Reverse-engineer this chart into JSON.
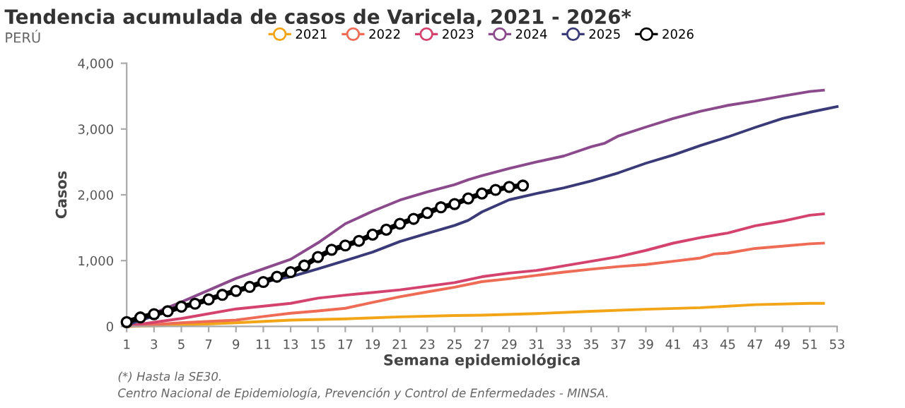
{
  "chart_data": {
    "type": "line",
    "title": "Tendencia acumulada de casos de Varicela, 2021 - 2026*",
    "subtitle": "PERÚ",
    "xlabel": "Semana epidemiológica",
    "ylabel": "Casos",
    "xlim": [
      1,
      53
    ],
    "xticks": [
      1,
      3,
      5,
      7,
      9,
      11,
      13,
      15,
      17,
      19,
      21,
      23,
      25,
      27,
      29,
      31,
      33,
      35,
      37,
      39,
      41,
      43,
      45,
      47,
      49,
      51,
      53
    ],
    "ylim": [
      0,
      4000
    ],
    "yticks": [
      0,
      {
        "value": 1000,
        "label": "1,000"
      },
      {
        "value": 2000,
        "label": "2,000"
      },
      {
        "value": 3000,
        "label": "3,000"
      },
      {
        "value": 4000,
        "label": "4,000"
      }
    ],
    "grid": false,
    "legend": "top",
    "marker": "none",
    "line_style": "solid",
    "series": [
      {
        "name": "2021",
        "color": "#f2a516",
        "x": [
          1,
          5,
          9,
          13,
          17,
          21,
          25,
          27,
          31,
          35,
          39,
          43,
          47,
          51,
          52
        ],
        "values": [
          0,
          20,
          55,
          95,
          115,
          145,
          165,
          170,
          195,
          230,
          260,
          285,
          330,
          350,
          350
        ]
      },
      {
        "name": "2022",
        "color": "#ee6c55",
        "x": [
          1,
          5,
          9,
          11,
          13,
          15,
          17,
          19,
          21,
          23,
          25,
          27,
          29,
          31,
          33,
          35,
          37,
          39,
          41,
          43,
          44,
          45,
          47,
          49,
          51,
          52
        ],
        "values": [
          0,
          55,
          95,
          150,
          200,
          235,
          275,
          365,
          450,
          525,
          595,
          680,
          725,
          775,
          825,
          870,
          910,
          940,
          990,
          1040,
          1100,
          1115,
          1185,
          1220,
          1255,
          1265
        ]
      },
      {
        "name": "2023",
        "color": "#d3436e",
        "x": [
          1,
          5,
          9,
          13,
          15,
          17,
          21,
          25,
          27,
          29,
          31,
          33,
          35,
          37,
          39,
          41,
          43,
          45,
          47,
          49,
          51,
          52
        ],
        "values": [
          5,
          120,
          265,
          350,
          430,
          475,
          555,
          665,
          755,
          810,
          850,
          920,
          990,
          1060,
          1155,
          1265,
          1350,
          1420,
          1530,
          1600,
          1690,
          1710
        ]
      },
      {
        "name": "2024",
        "color": "#8b4a8c",
        "x": [
          1,
          5,
          9,
          13,
          15,
          17,
          19,
          21,
          23,
          25,
          26,
          27,
          29,
          31,
          33,
          35,
          36,
          37,
          39,
          41,
          43,
          45,
          47,
          49,
          51,
          52
        ],
        "values": [
          30,
          370,
          730,
          1020,
          1270,
          1560,
          1750,
          1920,
          2045,
          2155,
          2230,
          2290,
          2400,
          2500,
          2590,
          2730,
          2785,
          2895,
          3030,
          3160,
          3270,
          3360,
          3425,
          3500,
          3570,
          3590
        ]
      },
      {
        "name": "2025",
        "color": "#3a3a78",
        "x": [
          1,
          5,
          9,
          11,
          13,
          15,
          17,
          19,
          21,
          23,
          25,
          26,
          27,
          29,
          31,
          33,
          35,
          37,
          39,
          41,
          43,
          45,
          47,
          49,
          51,
          53
        ],
        "values": [
          20,
          300,
          540,
          675,
          755,
          875,
          1000,
          1130,
          1290,
          1415,
          1535,
          1613,
          1740,
          1925,
          2020,
          2105,
          2210,
          2335,
          2480,
          2605,
          2750,
          2880,
          3025,
          3160,
          3255,
          3340
        ]
      },
      {
        "name": "2026",
        "color": "#000000",
        "marker": "circle",
        "x": [
          1,
          2,
          3,
          4,
          5,
          6,
          7,
          8,
          9,
          10,
          11,
          12,
          13,
          14,
          15,
          16,
          17,
          18,
          19,
          20,
          21,
          22,
          23,
          24,
          25,
          26,
          27,
          28,
          29,
          30
        ],
        "values": [
          65,
          136,
          186,
          230,
          300,
          345,
          410,
          480,
          540,
          600,
          675,
          755,
          825,
          925,
          1055,
          1165,
          1230,
          1300,
          1395,
          1470,
          1560,
          1635,
          1725,
          1810,
          1860,
          1945,
          2020,
          2075,
          2120,
          2140
        ]
      }
    ],
    "annotations": [
      "(*) Hasta la SE30.",
      "Centro Nacional de Epidemiología, Prevención y Control de Enfermedades - MINSA."
    ]
  }
}
